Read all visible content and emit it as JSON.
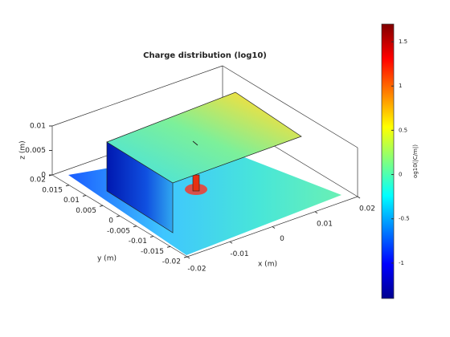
{
  "chart_data": {
    "type": "surface3d",
    "title": "Charge distribution (log10)",
    "xlabel": "x (m)",
    "ylabel": "y (m)",
    "zlabel": "z (m)",
    "xlim": [
      -0.02,
      0.02
    ],
    "xticks": [
      -0.02,
      -0.01,
      0,
      0.01,
      0.02
    ],
    "ylim": [
      -0.02,
      0.02
    ],
    "yticks": [
      -0.02,
      -0.015,
      -0.01,
      -0.005,
      0,
      0.005,
      0.01,
      0.015,
      0.02
    ],
    "zlim": [
      0,
      0.01
    ],
    "zticks": [
      0,
      0.005,
      0.01
    ],
    "colorbar": {
      "label": "og10(|C/m|)",
      "clim": [
        -1.4,
        1.7
      ],
      "ticks": [
        -1,
        -0.5,
        0,
        0.5,
        1,
        1.5
      ],
      "colormap": "jet"
    }
  }
}
